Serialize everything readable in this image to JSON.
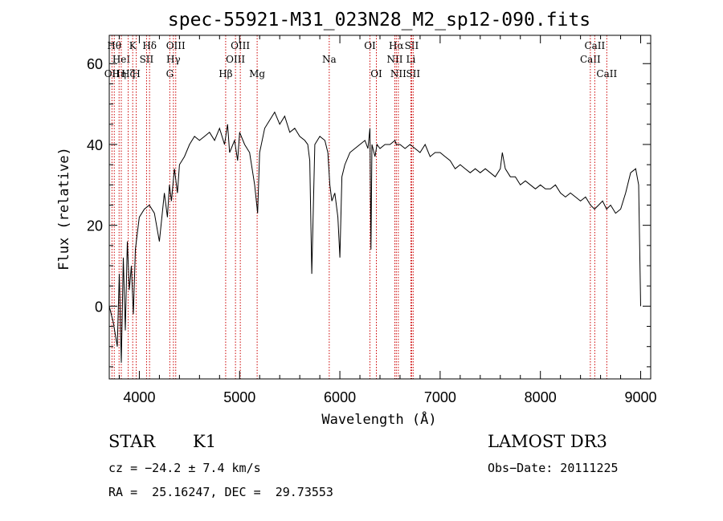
{
  "chart_data": {
    "type": "line",
    "title": "spec-55921-M31_023N28_M2_sp12-090.fits",
    "xlabel": "Wavelength (Å)",
    "ylabel": "Flux (relative)",
    "xlim": [
      3700,
      9100
    ],
    "ylim": [
      -18,
      67
    ],
    "xticks": [
      4000,
      5000,
      6000,
      7000,
      8000,
      9000
    ],
    "yticks": [
      0,
      20,
      40,
      60
    ],
    "grid": false,
    "line_color": "#000000",
    "marker_color": "#cc0000",
    "series": [
      {
        "x": [
          3700,
          3740,
          3780,
          3800,
          3820,
          3840,
          3860,
          3880,
          3900,
          3920,
          3940,
          3960,
          3980,
          4000,
          4050,
          4100,
          4150,
          4200,
          4250,
          4280,
          4300,
          4320,
          4350,
          4380,
          4400,
          4450,
          4500,
          4550,
          4600,
          4650,
          4700,
          4750,
          4800,
          4850,
          4880,
          4900,
          4950,
          4980,
          5000,
          5050,
          5100,
          5150,
          5180,
          5200,
          5250,
          5300,
          5350,
          5400,
          5450,
          5500,
          5550,
          5600,
          5650,
          5680,
          5700,
          5720,
          5750,
          5800,
          5850,
          5880,
          5900,
          5920,
          5950,
          5980,
          6000,
          6020,
          6050,
          6100,
          6150,
          6200,
          6250,
          6280,
          6300,
          6310,
          6320,
          6350,
          6370,
          6400,
          6450,
          6500,
          6550,
          6563,
          6600,
          6650,
          6700,
          6750,
          6800,
          6850,
          6900,
          6950,
          7000,
          7050,
          7100,
          7150,
          7200,
          7250,
          7300,
          7350,
          7400,
          7450,
          7500,
          7550,
          7600,
          7620,
          7650,
          7700,
          7750,
          7800,
          7850,
          7900,
          7950,
          8000,
          8050,
          8100,
          8150,
          8200,
          8250,
          8300,
          8350,
          8400,
          8450,
          8500,
          8540,
          8580,
          8620,
          8660,
          8700,
          8750,
          8800,
          8850,
          8900,
          8950,
          8980,
          9000
        ],
        "y": [
          0,
          -4,
          -10,
          8,
          -14,
          12,
          -6,
          16,
          4,
          10,
          -2,
          14,
          18,
          22,
          24,
          25,
          23,
          16,
          28,
          22,
          30,
          26,
          34,
          28,
          35,
          37,
          40,
          42,
          41,
          42,
          43,
          41,
          44,
          40,
          45,
          38,
          41,
          36,
          43,
          40,
          38,
          30,
          23,
          38,
          44,
          46,
          48,
          45,
          47,
          43,
          44,
          42,
          41,
          40,
          36,
          8,
          40,
          42,
          41,
          38,
          30,
          26,
          28,
          22,
          12,
          32,
          35,
          38,
          39,
          40,
          41,
          39,
          44,
          14,
          40,
          37,
          40,
          39,
          40,
          40,
          41,
          40,
          40,
          39,
          40,
          39,
          38,
          40,
          37,
          38,
          38,
          37,
          36,
          34,
          35,
          34,
          33,
          34,
          33,
          34,
          33,
          32,
          34,
          38,
          34,
          32,
          32,
          30,
          31,
          30,
          29,
          30,
          29,
          29,
          30,
          28,
          27,
          28,
          27,
          26,
          27,
          25,
          24,
          25,
          26,
          24,
          25,
          23,
          24,
          28,
          33,
          34,
          30,
          0
        ]
      }
    ],
    "line_markers": [
      {
        "x": 3727,
        "label": "OII",
        "row": 3
      },
      {
        "x": 3750,
        "label": "Hθ",
        "row": 1
      },
      {
        "x": 3798,
        "label": "Hη",
        "row": 3
      },
      {
        "x": 3820,
        "label": "HeI",
        "row": 2
      },
      {
        "x": 3889,
        "label": "Hζ",
        "row": 3
      },
      {
        "x": 3934,
        "label": "K",
        "row": 1
      },
      {
        "x": 3969,
        "label": "H",
        "row": 3
      },
      {
        "x": 4072,
        "label": "SII",
        "row": 2
      },
      {
        "x": 4102,
        "label": "Hδ",
        "row": 1
      },
      {
        "x": 4304,
        "label": "G",
        "row": 3
      },
      {
        "x": 4340,
        "label": "Hγ",
        "row": 2
      },
      {
        "x": 4363,
        "label": "OIII",
        "row": 1
      },
      {
        "x": 4861,
        "label": "Hβ",
        "row": 3
      },
      {
        "x": 4959,
        "label": "OIII",
        "row": 2
      },
      {
        "x": 5007,
        "label": "OIII",
        "row": 1
      },
      {
        "x": 5175,
        "label": "Mg",
        "row": 3
      },
      {
        "x": 5894,
        "label": "Na",
        "row": 2
      },
      {
        "x": 6300,
        "label": "OI",
        "row": 1
      },
      {
        "x": 6364,
        "label": "OI",
        "row": 3
      },
      {
        "x": 6548,
        "label": "NII",
        "row": 2
      },
      {
        "x": 6563,
        "label": "Hα",
        "row": 1
      },
      {
        "x": 6583,
        "label": "NII",
        "row": 3
      },
      {
        "x": 6708,
        "label": "Li",
        "row": 2
      },
      {
        "x": 6716,
        "label": "SII",
        "row": 1
      },
      {
        "x": 6731,
        "label": "SII",
        "row": 3
      },
      {
        "x": 8498,
        "label": "CaII",
        "row": 2
      },
      {
        "x": 8542,
        "label": "CaII",
        "row": 1
      },
      {
        "x": 8662,
        "label": "CaII",
        "row": 3
      }
    ]
  },
  "info": {
    "object_class": "STAR",
    "subclass": "K1",
    "survey": "LAMOST DR3",
    "redshift": "cz = −24.2 ± 7.4 km/s",
    "obs_date": "Obs−Date: 20111225",
    "coords": "RA =  25.16247, DEC =  29.73553"
  }
}
